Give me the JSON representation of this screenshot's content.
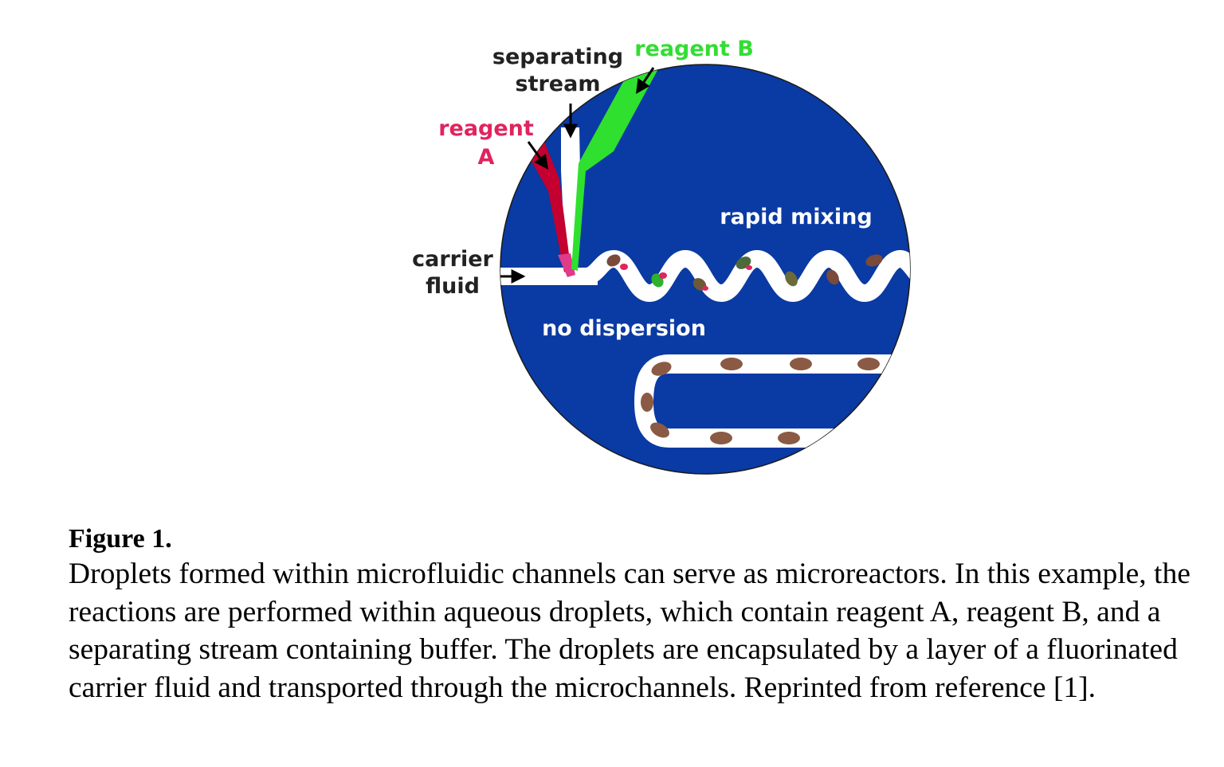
{
  "figure": {
    "labels": {
      "reagent_a_line1": "reagent",
      "reagent_a_line2": "A",
      "separating_line1": "separating",
      "separating_line2": "stream",
      "reagent_b": "reagent B",
      "carrier_line1": "carrier",
      "carrier_line2": "fluid",
      "rapid_mixing": "rapid mixing",
      "no_dispersion": "no dispersion"
    },
    "colors": {
      "background_disc": "#0a3aa3",
      "channel": "#ffffff",
      "reagent_a": "#c3002f",
      "reagent_b": "#2fe02f",
      "label_reagent_a": "#e0245e",
      "label_reagent_b": "#33dd33",
      "droplet": "#8b5a44"
    }
  },
  "caption": {
    "title": "Figure 1.",
    "body": "Droplets formed within microfluidic channels can serve as microreactors. In this example, the reactions are performed within aqueous droplets, which contain reagent A, reagent B, and a separating stream containing buffer. The droplets are encapsulated by a layer of a fluorinated carrier fluid and transported through the microchannels. Reprinted from reference [1]."
  }
}
